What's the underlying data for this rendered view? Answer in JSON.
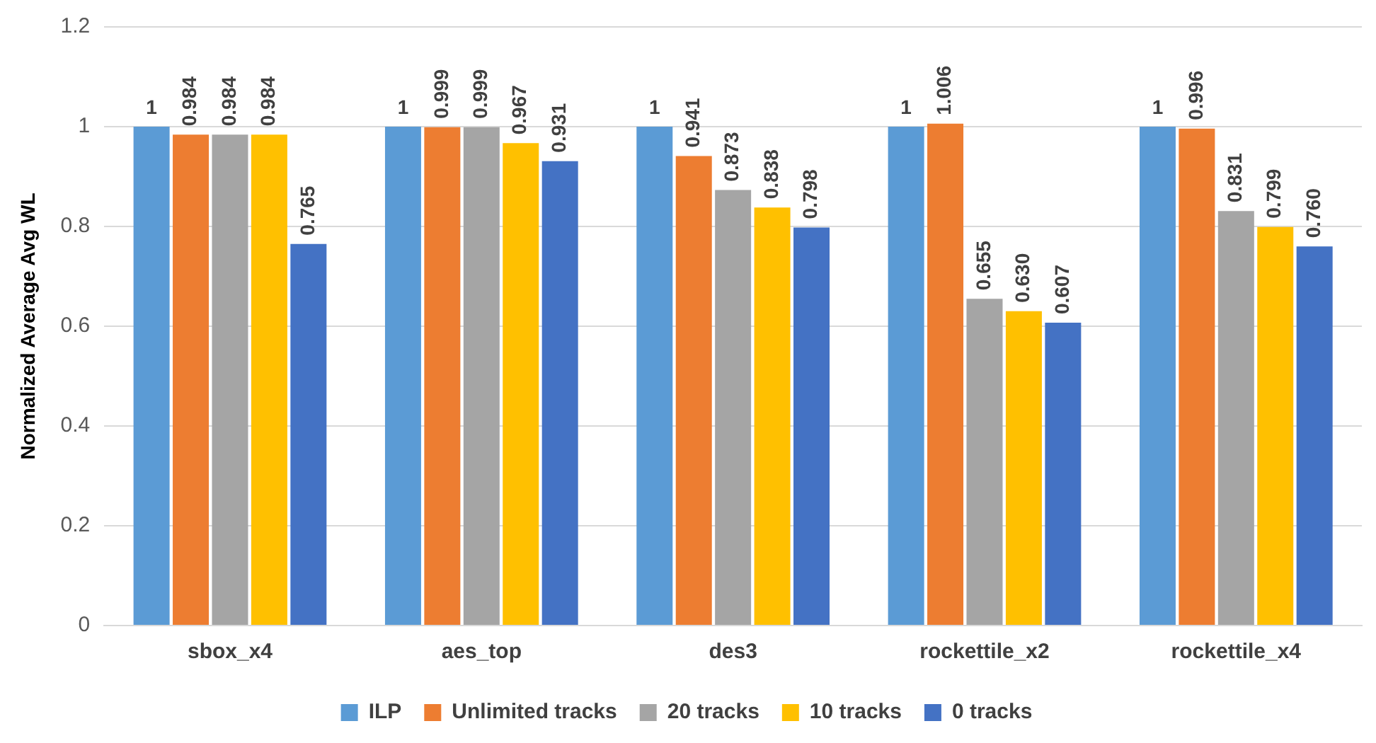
{
  "chart_data": {
    "type": "bar",
    "ylabel": "Normalized Average Avg WL",
    "categories": [
      "sbox_x4",
      "aes_top",
      "des3",
      "rockettile_x2",
      "rockettile_x4"
    ],
    "series": [
      {
        "name": "ILP",
        "color": "#5b9bd5",
        "values": [
          1,
          1,
          1,
          1,
          1
        ],
        "value_labels": [
          "1",
          "1",
          "1",
          "1",
          "1"
        ]
      },
      {
        "name": "Unlimited tracks",
        "color": "#ed7d31",
        "values": [
          0.984,
          0.999,
          0.941,
          1.006,
          0.996
        ],
        "value_labels": [
          "0.984",
          "0.999",
          "0.941",
          "1.006",
          "0.996"
        ]
      },
      {
        "name": "20 tracks",
        "color": "#a5a5a5",
        "values": [
          0.984,
          0.999,
          0.873,
          0.655,
          0.831
        ],
        "value_labels": [
          "0.984",
          "0.999",
          "0.873",
          "0.655",
          "0.831"
        ]
      },
      {
        "name": "10 tracks",
        "color": "#ffc000",
        "values": [
          0.984,
          0.967,
          0.838,
          0.63,
          0.799
        ],
        "value_labels": [
          "0.984",
          "0.967",
          "0.838",
          "0.630",
          "0.799"
        ]
      },
      {
        "name": "0 tracks",
        "color": "#4472c4",
        "values": [
          0.765,
          0.931,
          0.798,
          0.607,
          0.76
        ],
        "value_labels": [
          "0.765",
          "0.931",
          "0.798",
          "0.607",
          "0.760"
        ]
      }
    ],
    "ylim": [
      0,
      1.2
    ],
    "yticks": [
      0,
      0.2,
      0.4,
      0.6,
      0.8,
      1,
      1.2
    ],
    "grid": "y",
    "legend": "bottom"
  }
}
